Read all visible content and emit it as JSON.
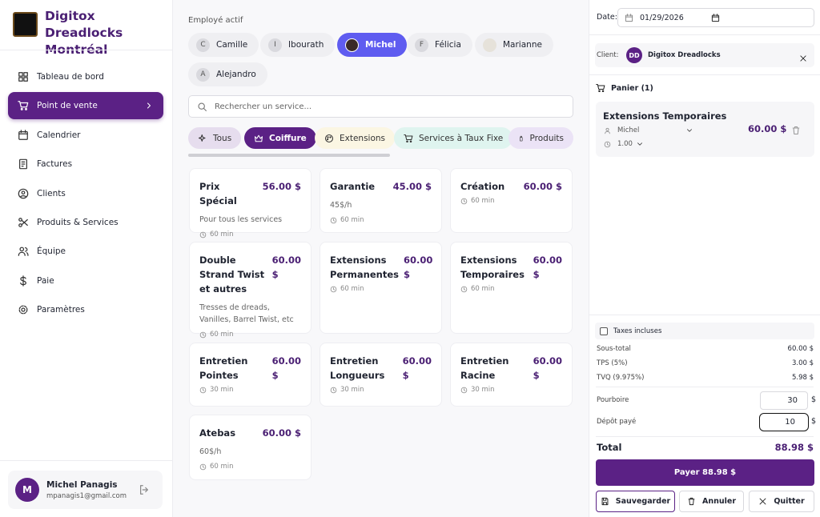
{
  "sidebar": {
    "brand": "Digitox Dreadlocks Montréal",
    "nav": [
      "Tableau de bord",
      "Point de vente",
      "Calendrier",
      "Factures",
      "Clients",
      "Produits & Services",
      "Équipe",
      "Paie",
      "Paramètres"
    ],
    "user": {
      "initial": "M",
      "name": "Michel Panagis",
      "email": "mpanagis1@gmail.com"
    }
  },
  "employees": {
    "label": "Employé actif",
    "items": [
      {
        "initial": "C",
        "name": "Camille"
      },
      {
        "initial": "I",
        "name": "Ibourath"
      },
      {
        "name": "Michel"
      },
      {
        "initial": "F",
        "name": "Félicia"
      },
      {
        "name": "Marianne"
      },
      {
        "initial": "A",
        "name": "Alejandro"
      }
    ]
  },
  "search": {
    "placeholder": "Rechercher un service..."
  },
  "filters": [
    "Tous",
    "Coiffure",
    "Extensions",
    "Services à Taux Fixe",
    "Produits"
  ],
  "services": [
    {
      "name": "Prix Spécial",
      "price": "56.00 $",
      "description": "Pour tous les services",
      "duration": "60 min"
    },
    {
      "name": "Garantie",
      "price": "45.00 $",
      "description": "45$/h",
      "duration": "60 min"
    },
    {
      "name": "Création",
      "price": "60.00 $",
      "duration": "60 min"
    },
    {
      "name": "Double Strand Twist et autres",
      "price": "60.00 $",
      "description": "Tresses de dreads, Vanilles, Barrel Twist, etc",
      "duration": "60 min"
    },
    {
      "name": "Extensions Permanentes",
      "price": "60.00 $",
      "duration": "60 min"
    },
    {
      "name": "Extensions Temporaires",
      "price": "60.00 $",
      "duration": "60 min"
    },
    {
      "name": "Entretien Pointes",
      "price": "60.00 $",
      "duration": "30 min"
    },
    {
      "name": "Entretien Longueurs",
      "price": "60.00 $",
      "duration": "30 min"
    },
    {
      "name": "Entretien Racine",
      "price": "60.00 $",
      "duration": "30 min"
    },
    {
      "name": "Atebas",
      "price": "60.00 $",
      "description": "60$/h",
      "duration": "60 min"
    }
  ],
  "cart": {
    "date_label": "Date:",
    "date": "01/29/2026",
    "client_label": "Client:",
    "client_initials": "DD",
    "client": "Digitox Dreadlocks",
    "title": "Panier (1)",
    "item": {
      "name": "Extensions Temporaires",
      "employee": "Michel",
      "quantity": "1.00",
      "price": "60.00 $"
    },
    "taxes_label": "Taxes incluses",
    "rows": [
      {
        "label": "Sous-total",
        "value": "60.00 $"
      },
      {
        "label": "TPS (5%)",
        "value": "3.00 $"
      },
      {
        "label": "TVQ (9.975%)",
        "value": "5.98 $"
      }
    ],
    "tip": {
      "label": "Pourboire",
      "value": "30",
      "unit": "$"
    },
    "deposit": {
      "label": "Dépôt payé",
      "value": "10",
      "unit": "$"
    },
    "total_label": "Total",
    "total": "88.98 $",
    "pay": "Payer 88.98 $",
    "save": "Sauvegarder",
    "cancel": "Annuler",
    "quit": "Quitter"
  }
}
